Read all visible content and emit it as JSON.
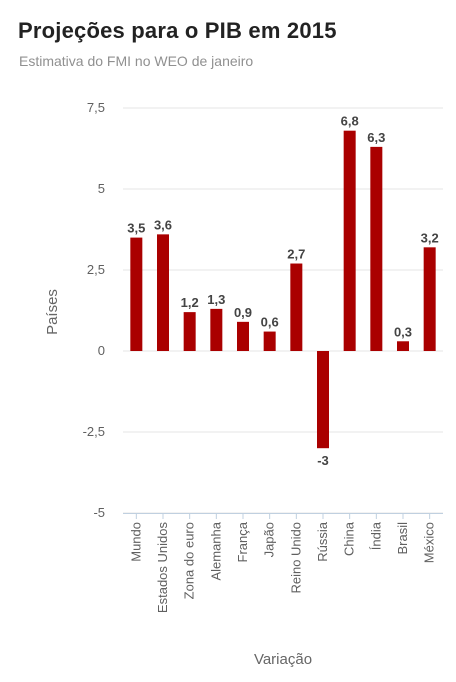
{
  "title": "Projeções para o PIB em 2015",
  "subtitle": "Estimativa do FMI no WEO de janeiro",
  "chart_data": {
    "type": "bar",
    "categories": [
      "Mundo",
      "Estados Unidos",
      "Zona do euro",
      "Alemanha",
      "França",
      "Japão",
      "Reino Unido",
      "Rússia",
      "China",
      "Índia",
      "Brasil",
      "México"
    ],
    "values": [
      3.5,
      3.6,
      1.2,
      1.3,
      0.9,
      0.6,
      2.7,
      -3,
      6.8,
      6.3,
      0.3,
      3.2
    ],
    "data_labels": [
      "3,5",
      "3,6",
      "1,2",
      "1,3",
      "0,9",
      "0,6",
      "2,7",
      "-3",
      "6,8",
      "6,3",
      "0,3",
      "3,2"
    ],
    "yticks": [
      7.5,
      5,
      2.5,
      0,
      -2.5,
      -5
    ],
    "ytick_labels": [
      "7,5",
      "5",
      "2,5",
      "0",
      "-2,5",
      "-5"
    ],
    "ylim": [
      -5,
      7.5
    ],
    "xlabel": "Variação",
    "ylabel": "Países",
    "bar_color": "#aa0000",
    "grid": true,
    "legend": "none"
  }
}
